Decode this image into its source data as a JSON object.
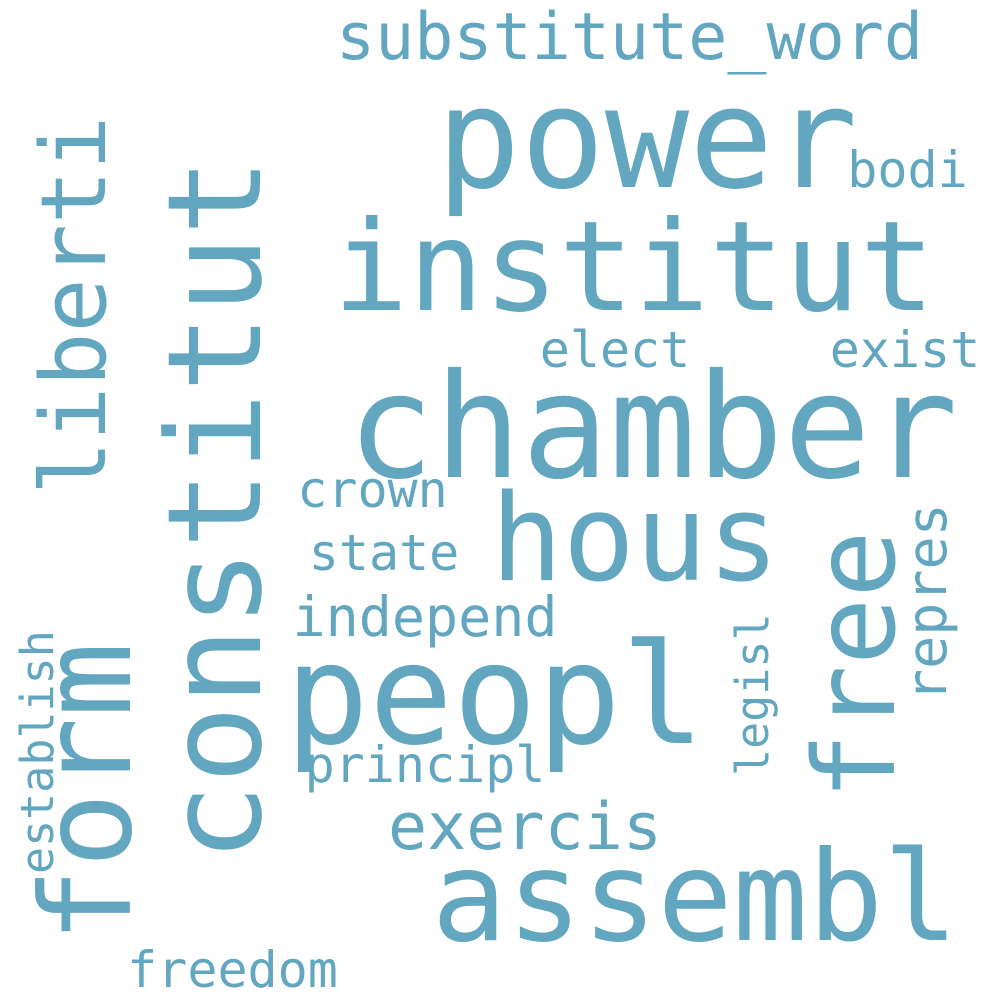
{
  "wordcloud": {
    "color": "#62a6c0",
    "words": [
      {
        "text": "constitut",
        "orientation": "vertical"
      },
      {
        "text": "power",
        "orientation": "horizontal"
      },
      {
        "text": "institut",
        "orientation": "horizontal"
      },
      {
        "text": "chamber",
        "orientation": "horizontal"
      },
      {
        "text": "hous",
        "orientation": "horizontal"
      },
      {
        "text": "peopl",
        "orientation": "horizontal"
      },
      {
        "text": "assembl",
        "orientation": "horizontal"
      },
      {
        "text": "liberti",
        "orientation": "vertical"
      },
      {
        "text": "free",
        "orientation": "vertical"
      },
      {
        "text": "form",
        "orientation": "vertical"
      },
      {
        "text": "substitute_word",
        "orientation": "horizontal"
      },
      {
        "text": "exercis",
        "orientation": "horizontal"
      },
      {
        "text": "repres",
        "orientation": "vertical"
      },
      {
        "text": "freedom",
        "orientation": "horizontal"
      },
      {
        "text": "establish",
        "orientation": "vertical"
      },
      {
        "text": "independ",
        "orientation": "horizontal"
      },
      {
        "text": "elect",
        "orientation": "horizontal"
      },
      {
        "text": "exist",
        "orientation": "horizontal"
      },
      {
        "text": "crown",
        "orientation": "horizontal"
      },
      {
        "text": "state",
        "orientation": "horizontal"
      },
      {
        "text": "principl",
        "orientation": "horizontal"
      },
      {
        "text": "legisl",
        "orientation": "vertical"
      },
      {
        "text": "bodi",
        "orientation": "horizontal"
      }
    ]
  }
}
